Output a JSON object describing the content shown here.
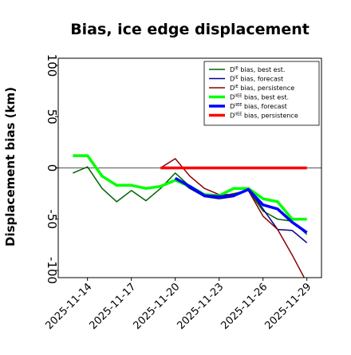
{
  "chart_data": {
    "type": "line",
    "title": "Bias, ice edge displacement",
    "ylabel": "Displacement bias (km)",
    "xlabel": "",
    "ylim": [
      -107,
      107
    ],
    "xlim": [
      "2025-11-12",
      "2025-11-30"
    ],
    "yticks": [
      100,
      50,
      0,
      -50,
      -100
    ],
    "xticks": [
      {
        "date": "2025-11-14",
        "label": "2025-11-14",
        "color": "#000000"
      },
      {
        "date": "2025-11-17",
        "label": "2025-11-17",
        "color": "#000000"
      },
      {
        "date": "2025-11-20",
        "label": "2025-11-20",
        "color": "#228b22"
      },
      {
        "date": "2025-11-23",
        "label": "2025-11-23",
        "color": "#000000"
      },
      {
        "date": "2025-11-26",
        "label": "2025-11-26",
        "color": "#000000"
      },
      {
        "date": "2025-11-29",
        "label": "2025-11-29",
        "color": "#000000"
      }
    ],
    "grid": false,
    "legend_position": "top-right",
    "zero_line": 0,
    "series": [
      {
        "name_prefix": "D",
        "name_sup": "IE",
        "name_suffix": " bias, best est.",
        "color": "#006400",
        "width": 1.5,
        "points": [
          [
            "2025-11-13",
            -5
          ],
          [
            "2025-11-14",
            1
          ],
          [
            "2025-11-15",
            -20
          ],
          [
            "2025-11-16",
            -33
          ],
          [
            "2025-11-17",
            -22
          ],
          [
            "2025-11-18",
            -32
          ],
          [
            "2025-11-19",
            -20
          ],
          [
            "2025-11-20",
            -5
          ],
          [
            "2025-11-21",
            -18
          ],
          [
            "2025-11-22",
            -28
          ],
          [
            "2025-11-23",
            -28
          ],
          [
            "2025-11-24",
            -25
          ],
          [
            "2025-11-25",
            -22
          ],
          [
            "2025-11-26",
            -42
          ],
          [
            "2025-11-27",
            -50
          ],
          [
            "2025-11-28",
            -52
          ],
          [
            "2025-11-29",
            -65
          ]
        ]
      },
      {
        "name_prefix": "D",
        "name_sup": "IE",
        "name_suffix": " bias, forecast",
        "color": "#00008b",
        "width": 1.5,
        "points": [
          [
            "2025-11-20",
            -10
          ],
          [
            "2025-11-21",
            -20
          ],
          [
            "2025-11-22",
            -28
          ],
          [
            "2025-11-23",
            -30
          ],
          [
            "2025-11-24",
            -28
          ],
          [
            "2025-11-25",
            -20
          ],
          [
            "2025-11-26",
            -40
          ],
          [
            "2025-11-27",
            -60
          ],
          [
            "2025-11-28",
            -61
          ],
          [
            "2025-11-29",
            -73
          ]
        ]
      },
      {
        "name_prefix": "D",
        "name_sup": "IE",
        "name_suffix": " bias, persistence",
        "color": "#8b0000",
        "width": 1.5,
        "points": [
          [
            "2025-11-19",
            0
          ],
          [
            "2025-11-20",
            9
          ],
          [
            "2025-11-21",
            -8
          ],
          [
            "2025-11-22",
            -20
          ],
          [
            "2025-11-23",
            -26
          ],
          [
            "2025-11-24",
            -26
          ],
          [
            "2025-11-25",
            -22
          ],
          [
            "2025-11-26",
            -47
          ],
          [
            "2025-11-27",
            -60
          ],
          [
            "2025-11-28",
            -85
          ],
          [
            "2025-11-29",
            -112
          ]
        ]
      },
      {
        "name_prefix": "D",
        "name_sup": "IIEE",
        "name_suffix": " bias, best est.",
        "color": "#00ff00",
        "width": 3.5,
        "points": [
          [
            "2025-11-13",
            12
          ],
          [
            "2025-11-14",
            12
          ],
          [
            "2025-11-15",
            -8
          ],
          [
            "2025-11-16",
            -17
          ],
          [
            "2025-11-17",
            -17
          ],
          [
            "2025-11-18",
            -20
          ],
          [
            "2025-11-19",
            -18
          ],
          [
            "2025-11-20",
            -12
          ],
          [
            "2025-11-21",
            -18
          ],
          [
            "2025-11-22",
            -26
          ],
          [
            "2025-11-23",
            -27
          ],
          [
            "2025-11-24",
            -20
          ],
          [
            "2025-11-25",
            -20
          ],
          [
            "2025-11-26",
            -30
          ],
          [
            "2025-11-27",
            -33
          ],
          [
            "2025-11-28",
            -50
          ],
          [
            "2025-11-29",
            -50
          ]
        ]
      },
      {
        "name_prefix": "D",
        "name_sup": "IIEE",
        "name_suffix": " bias, forecast",
        "color": "#0000ff",
        "width": 3.5,
        "points": [
          [
            "2025-11-20",
            -10
          ],
          [
            "2025-11-21",
            -18
          ],
          [
            "2025-11-22",
            -27
          ],
          [
            "2025-11-23",
            -28
          ],
          [
            "2025-11-24",
            -27
          ],
          [
            "2025-11-25",
            -21
          ],
          [
            "2025-11-26",
            -36
          ],
          [
            "2025-11-27",
            -40
          ],
          [
            "2025-11-28",
            -53
          ],
          [
            "2025-11-29",
            -63
          ]
        ]
      },
      {
        "name_prefix": "D",
        "name_sup": "IIEE",
        "name_suffix": " bias, persistence",
        "color": "#ff0000",
        "width": 3.5,
        "points": [
          [
            "2025-11-19",
            0
          ],
          [
            "2025-11-20",
            0
          ],
          [
            "2025-11-21",
            0
          ],
          [
            "2025-11-22",
            0
          ],
          [
            "2025-11-23",
            0
          ],
          [
            "2025-11-24",
            0
          ],
          [
            "2025-11-25",
            0
          ],
          [
            "2025-11-26",
            0
          ],
          [
            "2025-11-27",
            0
          ],
          [
            "2025-11-28",
            0
          ],
          [
            "2025-11-29",
            0
          ]
        ]
      }
    ]
  }
}
